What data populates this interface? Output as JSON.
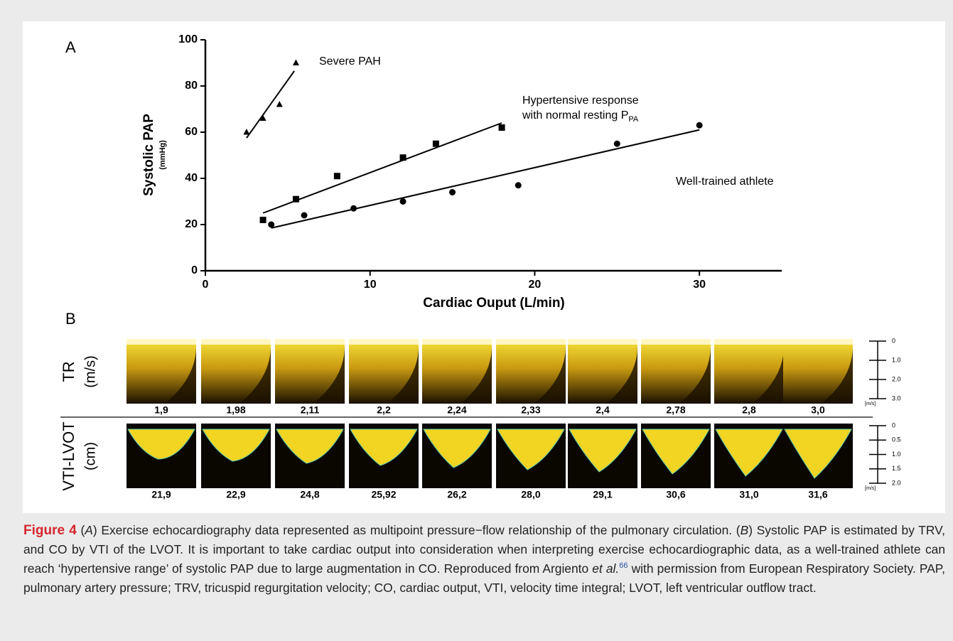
{
  "chart_data": {
    "type": "scatter",
    "panel_label": "A",
    "x_label": "Cardiac Ouput (L/min)",
    "y_label": "Systolic PAP",
    "y_unit": "(mmHg)",
    "xlim": [
      0,
      35
    ],
    "xticks": [
      0,
      10,
      20,
      30
    ],
    "ylim": [
      0,
      100
    ],
    "yticks": [
      0,
      20,
      40,
      60,
      80,
      100
    ],
    "series": [
      {
        "label": [
          "Severe PAH"
        ],
        "marker": "triangle",
        "color": "#000000",
        "x": [
          2.5,
          3.5,
          4.5,
          5.5
        ],
        "values": [
          60,
          66,
          72,
          90
        ],
        "fit_x": [
          2.5,
          5.4
        ],
        "fit_y": [
          57.5,
          86.5
        ]
      },
      {
        "label": [
          "Hypertensive response",
          "with normal resting P"
        ],
        "label_subscript": "PA",
        "marker": "square",
        "color": "#000000",
        "x": [
          3.5,
          5.5,
          8,
          12,
          14,
          18
        ],
        "values": [
          22,
          31,
          41,
          49,
          55,
          62
        ],
        "fit_x": [
          3.5,
          18
        ],
        "fit_y": [
          25,
          64
        ]
      },
      {
        "label": [
          "Well-trained athlete"
        ],
        "marker": "circle",
        "color": "#000000",
        "x": [
          4,
          6,
          9,
          12,
          15,
          19,
          25,
          30
        ],
        "values": [
          20,
          24,
          27,
          30,
          34,
          37,
          55,
          63
        ],
        "fit_x": [
          4,
          30
        ],
        "fit_y": [
          18.5,
          61
        ]
      }
    ]
  },
  "panel_b": {
    "label": "B",
    "rows": [
      {
        "label": "TR",
        "unit": "(m/s)",
        "values": [
          "1,9",
          "1,98",
          "2,11",
          "2,2",
          "2,24",
          "2,33",
          "2,4",
          "2,78",
          "2,8",
          "3,0"
        ],
        "scale": [
          "0",
          "1.0",
          "2.0",
          "3.0"
        ],
        "scale_unit": "[m/s]"
      },
      {
        "label": "VTI-LVOT",
        "unit": "(cm)",
        "values": [
          "21,9",
          "22,9",
          "24,8",
          "25,92",
          "26,2",
          "28,0",
          "29,1",
          "30,6",
          "31,0",
          "31,6"
        ],
        "scale": [
          "0",
          "0.5",
          "1.0",
          "1.5",
          "2.0"
        ],
        "scale_unit": "[m/s]"
      }
    ]
  },
  "caption": {
    "label": "Figure 4",
    "text": [
      "(",
      "A",
      ") Exercise echocardiography data represented as multipoint pressure−flow relationship of the pulmonary circulation. (",
      "B",
      ") Systolic PAP is estimated by TRV, and CO by VTI of the LVOT. It is important to take cardiac output into consideration when interpreting exercise echocardiographic data, as a well-trained athlete can reach ‘hypertensive range’ of systolic PAP due to large augmentation in CO. Reproduced from Argiento ",
      "et al.",
      "66",
      " with permission from European Respiratory Society. PAP, pulmonary artery pressure; TRV, tricuspid regurgitation velocity; CO, cardiac output, VTI, velocity time integral; LVOT, left ventricular outflow tract."
    ]
  }
}
